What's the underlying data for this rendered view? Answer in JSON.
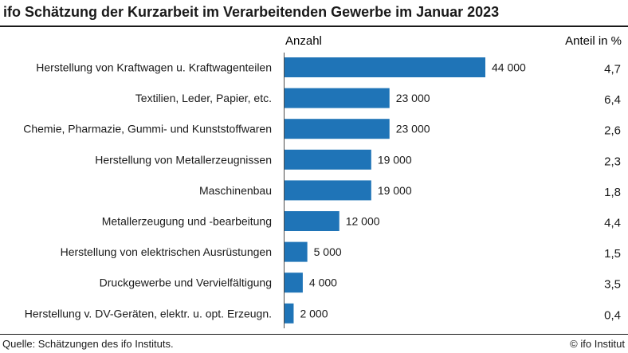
{
  "title": "ifo Schätzung der Kurzarbeit im Verarbeitenden Gewerbe im Januar 2023",
  "source": "Quelle: Schätzungen des ifo Instituts.",
  "copyright": "© ifo Institut",
  "colors": {
    "bar": "#1f74b7",
    "text": "#1a1a1a",
    "axis": "#4d4d4d"
  },
  "chart_data": {
    "type": "bar",
    "orientation": "horizontal",
    "title": "ifo Schätzung der Kurzarbeit im Verarbeitenden Gewerbe im Januar 2023",
    "column_headers": {
      "value": "Anzahl",
      "share": "Anteil in %"
    },
    "categories": [
      "Herstellung von Kraftwagen u. Kraftwagenteilen",
      "Textilien, Leder, Papier, etc.",
      "Chemie, Pharmazie, Gummi- und Kunststoffwaren",
      "Herstellung von Metallerzeugnissen",
      "Maschinenbau",
      "Metallerzeugung und -bearbeitung",
      "Herstellung von elektrischen Ausrüstungen",
      "Druckgewerbe und Vervielfältigung",
      "Herstellung v. DV-Geräten, elektr. u. opt. Erzeugn."
    ],
    "values": [
      44000,
      23000,
      23000,
      19000,
      19000,
      12000,
      5000,
      4000,
      2000
    ],
    "value_labels": [
      "44 000",
      "23 000",
      "23 000",
      "19 000",
      "19 000",
      "12 000",
      "5 000",
      "4 000",
      "2 000"
    ],
    "shares": [
      "4,7",
      "6,4",
      "2,6",
      "2,3",
      "1,8",
      "4,4",
      "1,5",
      "3,5",
      "0,4"
    ],
    "xlim": [
      0,
      44000
    ],
    "grid": false,
    "legend": "none"
  }
}
